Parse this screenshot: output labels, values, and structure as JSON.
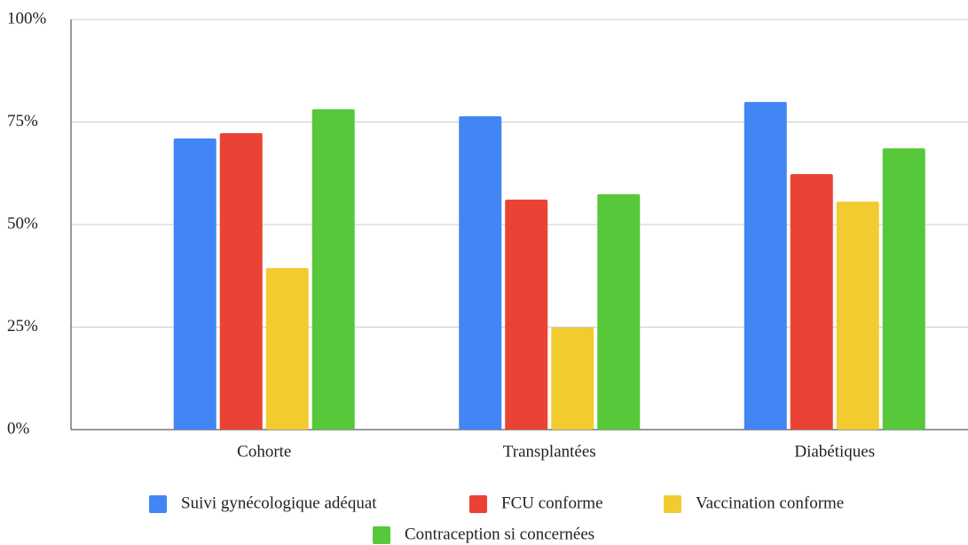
{
  "chart_data": {
    "type": "bar",
    "categories": [
      "Cohorte",
      "Transplantées",
      "Diabétiques"
    ],
    "series": [
      {
        "name": "Suivi gynécologique adéquat",
        "color": "#4285f4",
        "values": [
          71.0,
          76.4,
          79.9
        ]
      },
      {
        "name": "FCU conforme",
        "color": "#ea4335",
        "values": [
          72.3,
          56.1,
          62.3
        ]
      },
      {
        "name": "Vaccination conforme",
        "color": "#f2cb31",
        "values": [
          39.4,
          24.9,
          55.6
        ]
      },
      {
        "name": "Contraception si concernées",
        "color": "#57c83a",
        "values": [
          78.1,
          57.4,
          68.6
        ]
      }
    ],
    "ylim": [
      0,
      100
    ],
    "yticks": [
      {
        "value": 0,
        "label": "0%"
      },
      {
        "value": 25,
        "label": "25%"
      },
      {
        "value": 50,
        "label": "50%"
      },
      {
        "value": 75,
        "label": "75%"
      },
      {
        "value": 100,
        "label": "100%"
      }
    ],
    "grid": true,
    "legend": "bottom"
  }
}
